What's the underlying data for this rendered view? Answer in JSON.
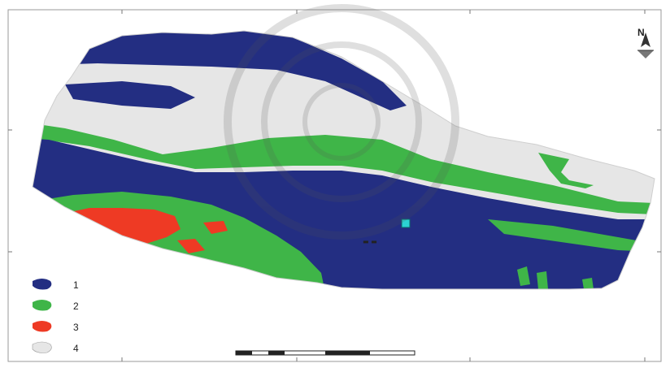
{
  "legend": {
    "items": [
      {
        "label": "1",
        "color": "#232e82"
      },
      {
        "label": "2",
        "color": "#3fb548"
      },
      {
        "label": "3",
        "color": "#ee3a24"
      },
      {
        "label": "4",
        "color": "#e6e6e6"
      }
    ]
  },
  "north_arrow": {
    "letter": "N"
  },
  "colors": {
    "class1": "#232e82",
    "class2": "#3fb548",
    "class3": "#ee3a24",
    "class4": "#e6e6e6",
    "frame": "#9a9a9a",
    "marker": "#2bd3d3"
  },
  "icons": [
    "north-arrow-icon",
    "legend-swatch-icon",
    "site-marker-icon",
    "watermark-icon"
  ]
}
